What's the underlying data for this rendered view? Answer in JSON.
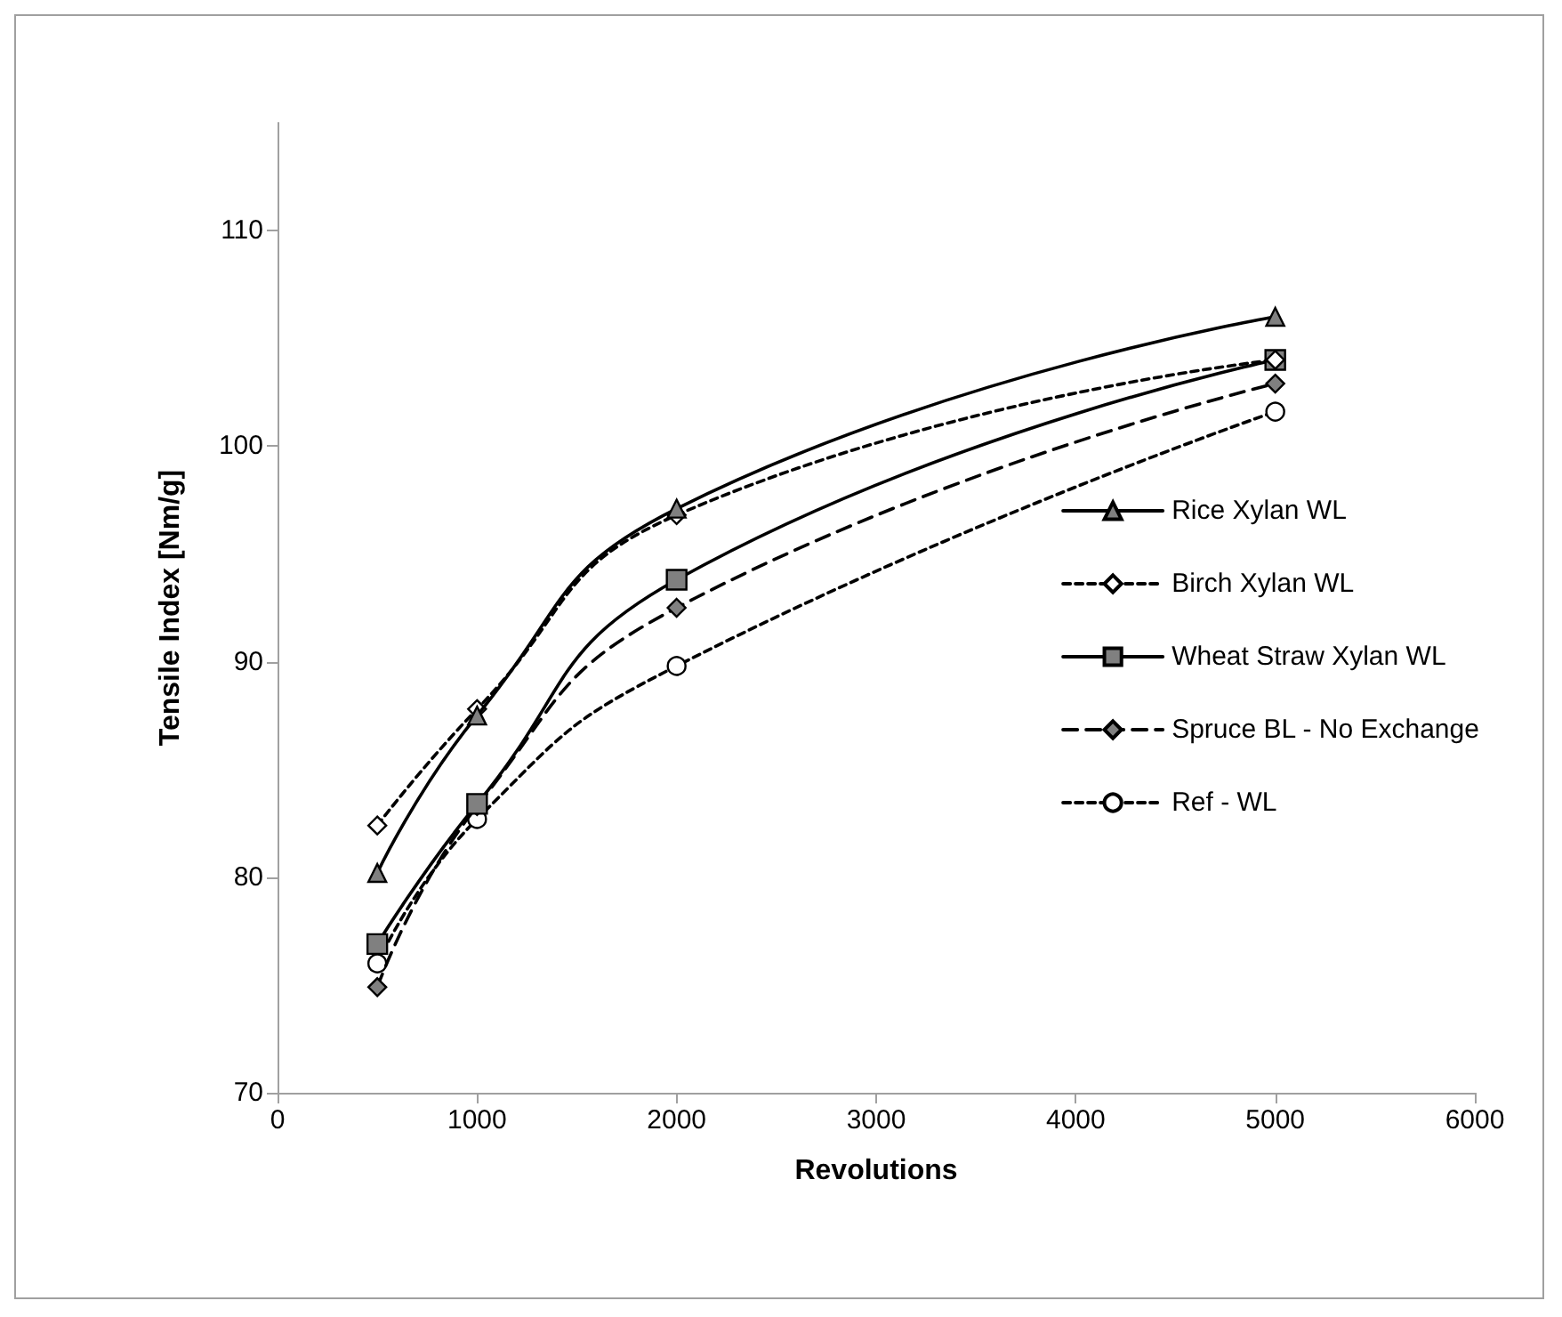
{
  "chart_data": {
    "type": "line",
    "xlabel": "Revolutions",
    "ylabel": "Tensile Index [Nm/g]",
    "x": [
      500,
      1000,
      2000,
      5000
    ],
    "xlim": [
      0,
      6000
    ],
    "xticks": [
      0,
      1000,
      2000,
      3000,
      4000,
      5000,
      6000
    ],
    "ylim": [
      70,
      115
    ],
    "yticks": [
      70,
      80,
      90,
      100,
      110
    ],
    "grid": false,
    "legend": "right",
    "series": [
      {
        "name": "Rice Xylan WL",
        "color": "#808080",
        "marker": "triangle",
        "line_style": "solid",
        "values": [
          80.2,
          87.5,
          97.1,
          106.0
        ]
      },
      {
        "name": "Birch Xylan WL",
        "color": "#ffffff",
        "marker": "diamond",
        "line_style": "dotted",
        "values": [
          82.4,
          87.8,
          96.8,
          104.0
        ]
      },
      {
        "name": "Wheat Straw Xylan WL",
        "color": "#808080",
        "marker": "square",
        "line_style": "solid",
        "values": [
          76.9,
          83.4,
          93.8,
          104.0
        ]
      },
      {
        "name": "Spruce BL - No Exchange",
        "color": "#808080",
        "marker": "diamond",
        "line_style": "dashed",
        "values": [
          74.9,
          83.3,
          92.5,
          102.9
        ]
      },
      {
        "name": "Ref - WL",
        "color": "#ffffff",
        "marker": "circle",
        "line_style": "dotted",
        "values": [
          76.0,
          82.7,
          89.8,
          101.6
        ]
      }
    ]
  }
}
